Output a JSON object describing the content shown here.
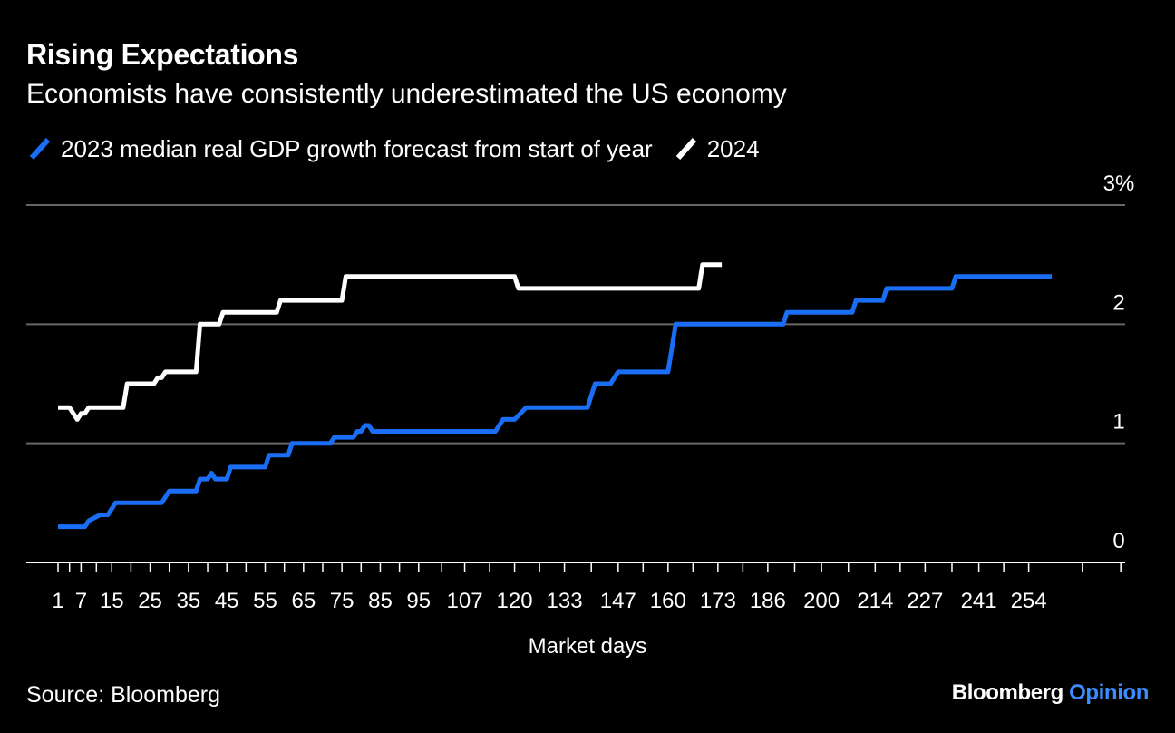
{
  "chart_data": {
    "type": "line",
    "title": "Rising Expectations",
    "subtitle": "Economists have consistently underestimated the US economy",
    "xlabel": "Market days",
    "ylabel": "",
    "ylim": [
      0,
      3
    ],
    "yticks": [
      0,
      1,
      2,
      3
    ],
    "ytick_labels": [
      "0",
      "1",
      "2",
      "3%"
    ],
    "xticks": [
      1,
      7,
      15,
      25,
      35,
      45,
      55,
      65,
      75,
      85,
      95,
      107,
      120,
      133,
      147,
      160,
      173,
      186,
      200,
      214,
      227,
      241,
      254
    ],
    "grid": true,
    "legend_position": "top-left",
    "series": [
      {
        "name": "2023 median real GDP growth forecast from start of year",
        "color": "#1a6ef5",
        "points": [
          [
            1,
            0.3
          ],
          [
            8,
            0.3
          ],
          [
            9,
            0.35
          ],
          [
            12,
            0.4
          ],
          [
            14,
            0.4
          ],
          [
            15,
            0.45
          ],
          [
            16,
            0.5
          ],
          [
            28,
            0.5
          ],
          [
            29,
            0.55
          ],
          [
            30,
            0.6
          ],
          [
            37,
            0.6
          ],
          [
            38,
            0.7
          ],
          [
            40,
            0.7
          ],
          [
            41,
            0.75
          ],
          [
            42,
            0.7
          ],
          [
            45,
            0.7
          ],
          [
            46,
            0.8
          ],
          [
            55,
            0.8
          ],
          [
            56,
            0.9
          ],
          [
            61,
            0.9
          ],
          [
            62,
            1.0
          ],
          [
            72,
            1.0
          ],
          [
            73,
            1.05
          ],
          [
            78,
            1.05
          ],
          [
            79,
            1.1
          ],
          [
            80,
            1.1
          ],
          [
            81,
            1.15
          ],
          [
            82,
            1.15
          ],
          [
            83,
            1.1
          ],
          [
            115,
            1.1
          ],
          [
            117,
            1.2
          ],
          [
            120,
            1.2
          ],
          [
            123,
            1.3
          ],
          [
            139,
            1.3
          ],
          [
            141,
            1.5
          ],
          [
            145,
            1.5
          ],
          [
            147,
            1.6
          ],
          [
            160,
            1.6
          ],
          [
            162,
            2.0
          ],
          [
            190,
            2.0
          ],
          [
            191,
            2.1
          ],
          [
            208,
            2.1
          ],
          [
            209,
            2.2
          ],
          [
            216,
            2.2
          ],
          [
            217,
            2.3
          ],
          [
            234,
            2.3
          ],
          [
            235,
            2.4
          ],
          [
            260,
            2.4
          ]
        ]
      },
      {
        "name": "2024",
        "color": "#ffffff",
        "points": [
          [
            1,
            1.3
          ],
          [
            4,
            1.3
          ],
          [
            6,
            1.2
          ],
          [
            7,
            1.25
          ],
          [
            8,
            1.25
          ],
          [
            9,
            1.3
          ],
          [
            18,
            1.3
          ],
          [
            19,
            1.5
          ],
          [
            26,
            1.5
          ],
          [
            27,
            1.55
          ],
          [
            28,
            1.55
          ],
          [
            29,
            1.6
          ],
          [
            37,
            1.6
          ],
          [
            38,
            2.0
          ],
          [
            43,
            2.0
          ],
          [
            44,
            2.1
          ],
          [
            58,
            2.1
          ],
          [
            59,
            2.2
          ],
          [
            75,
            2.2
          ],
          [
            76,
            2.4
          ],
          [
            120,
            2.4
          ],
          [
            121,
            2.3
          ],
          [
            168,
            2.3
          ],
          [
            169,
            2.5
          ],
          [
            174,
            2.5
          ]
        ]
      }
    ]
  },
  "source": "Source: Bloomberg",
  "brand": {
    "name": "Bloomberg",
    "suffix": "Opinion",
    "accent": "#3a8dff"
  }
}
